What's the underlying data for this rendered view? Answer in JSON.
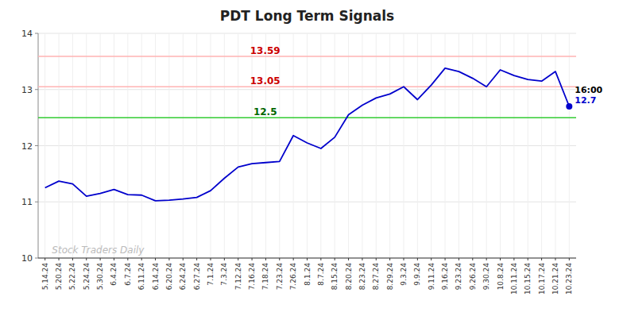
{
  "chart_data": {
    "type": "line",
    "title": "PDT Long Term Signals",
    "categories": [
      "5.14.24",
      "5.20.24",
      "5.22.24",
      "5.24.24",
      "5.30.24",
      "6.4.24",
      "6.7.24",
      "6.11.24",
      "6.14.24",
      "6.20.24",
      "6.24.24",
      "6.27.24",
      "7.1.24",
      "7.3.24",
      "7.12.24",
      "7.16.24",
      "7.18.24",
      "7.23.24",
      "7.26.24",
      "8.1.24",
      "8.7.24",
      "8.15.24",
      "8.20.24",
      "8.23.24",
      "8.27.24",
      "8.29.24",
      "9.3.24",
      "9.9.24",
      "9.11.24",
      "9.16.24",
      "9.23.24",
      "9.26.24",
      "9.30.24",
      "10.8.24",
      "10.11.24",
      "10.15.24",
      "10.17.24",
      "10.21.24",
      "10.23.24"
    ],
    "values": [
      11.25,
      11.37,
      11.32,
      11.1,
      11.15,
      11.22,
      11.13,
      11.12,
      11.02,
      11.03,
      11.05,
      11.08,
      11.2,
      11.42,
      11.62,
      11.68,
      11.7,
      11.72,
      12.18,
      12.05,
      11.95,
      12.15,
      12.55,
      12.72,
      12.85,
      12.92,
      13.05,
      12.82,
      13.08,
      13.38,
      13.32,
      13.2,
      13.05,
      13.35,
      13.25,
      13.18,
      13.15,
      13.32,
      12.7
    ],
    "color": "#0000CC",
    "ylim": [
      10,
      14
    ],
    "yticks": [
      10,
      11,
      12,
      13,
      14
    ],
    "grid": true,
    "reference_lines": [
      {
        "value": 13.59,
        "label": "13.59",
        "color": "#FFB3B3",
        "label_color": "#CC0000"
      },
      {
        "value": 13.05,
        "label": "13.05",
        "color": "#FFB3B3",
        "label_color": "#CC0000"
      },
      {
        "value": 12.5,
        "label": "12.5",
        "color": "#33CC33",
        "label_color": "#006600"
      }
    ],
    "annotations": [
      {
        "text": "16:00",
        "color": "#000000"
      },
      {
        "text": "12.7",
        "color": "#0000CC"
      }
    ],
    "watermark": "Stock Traders Daily"
  }
}
